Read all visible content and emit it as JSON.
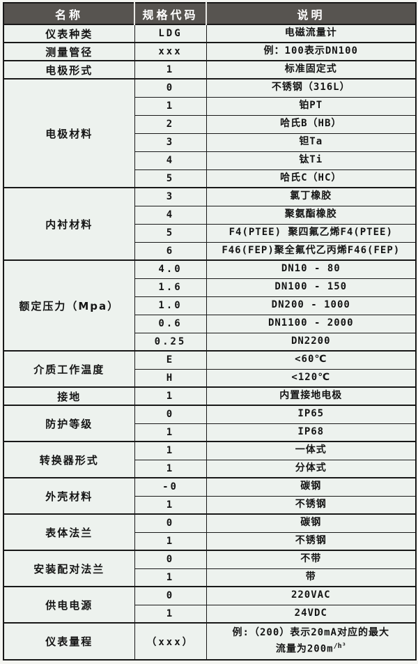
{
  "table": {
    "headers": [
      "名称",
      "规格代码",
      "说明"
    ],
    "sections": [
      {
        "name": "仪表种类",
        "rows": [
          {
            "code": "LDG",
            "desc": "电磁流量计"
          }
        ]
      },
      {
        "name": "测量管径",
        "rows": [
          {
            "code": "xxx",
            "desc": "例：100表示DN100"
          }
        ]
      },
      {
        "name": "电极形式",
        "rows": [
          {
            "code": "1",
            "desc": "标准固定式"
          }
        ]
      },
      {
        "name": "电极材料",
        "rows": [
          {
            "code": "0",
            "desc": "不锈钢（316L）"
          },
          {
            "code": "1",
            "desc": "铂PT"
          },
          {
            "code": "2",
            "desc": "哈氏B（HB）"
          },
          {
            "code": "3",
            "desc": "钽Ta"
          },
          {
            "code": "4",
            "desc": "钛Ti"
          },
          {
            "code": "5",
            "desc": "哈氏C（HC）"
          }
        ]
      },
      {
        "name": "内衬材料",
        "rows": [
          {
            "code": "3",
            "desc": "氯丁橡胶"
          },
          {
            "code": "4",
            "desc": "聚氨酯橡胶"
          },
          {
            "code": "5",
            "desc": "F4(PTEE) 聚四氟乙烯F4(PTEE)"
          },
          {
            "code": "6",
            "desc": "F46(FEP)聚全氟代乙丙烯F46(FEP)"
          }
        ]
      },
      {
        "name": "额定压力（Mpa）",
        "rows": [
          {
            "code": "4.0",
            "desc": "DN10 - 80"
          },
          {
            "code": "1.6",
            "desc": "DN100 - 150"
          },
          {
            "code": "1.0",
            "desc": "DN200 - 1000"
          },
          {
            "code": "0.6",
            "desc": "DN1100 - 2000"
          },
          {
            "code": "0.25",
            "desc": "DN2200"
          }
        ]
      },
      {
        "name": "介质工作温度",
        "rows": [
          {
            "code": "E",
            "desc": "<60℃"
          },
          {
            "code": "H",
            "desc": "<120℃"
          }
        ]
      },
      {
        "name": "接地",
        "rows": [
          {
            "code": "1",
            "desc": "内置接地电极"
          }
        ]
      },
      {
        "name": "防护等级",
        "rows": [
          {
            "code": "0",
            "desc": "IP65"
          },
          {
            "code": "1",
            "desc": "IP68"
          }
        ]
      },
      {
        "name": "转换器形式",
        "rows": [
          {
            "code": "1",
            "desc": "一体式"
          },
          {
            "code": "1",
            "desc": "分体式"
          }
        ]
      },
      {
        "name": "外壳材料",
        "rows": [
          {
            "code": "-0",
            "desc": "碳钢"
          },
          {
            "code": "1",
            "desc": "不锈钢"
          }
        ]
      },
      {
        "name": "表体法兰",
        "rows": [
          {
            "code": "0",
            "desc": "碳钢"
          },
          {
            "code": "1",
            "desc": "不锈钢"
          }
        ]
      },
      {
        "name": "安装配对法兰",
        "rows": [
          {
            "code": "0",
            "desc": "不带"
          },
          {
            "code": "1",
            "desc": "带"
          }
        ]
      },
      {
        "name": "供电电源",
        "rows": [
          {
            "code": "0",
            "desc": "220VAC"
          },
          {
            "code": "1",
            "desc": "24VDC"
          }
        ]
      },
      {
        "name": "仪表量程",
        "rows": [
          {
            "code": "（xxx）",
            "desc_lines": [
              "例:（200）表示20mA对应的最大",
              "流量为200m"
            ],
            "desc_sup": "/h³"
          }
        ]
      }
    ]
  },
  "colors": {
    "header_bg": "#575450",
    "header_text": "#ffffff",
    "cell_bg": "#edf2ee",
    "border": "#181818",
    "page_bg": "#d3d3ce"
  }
}
